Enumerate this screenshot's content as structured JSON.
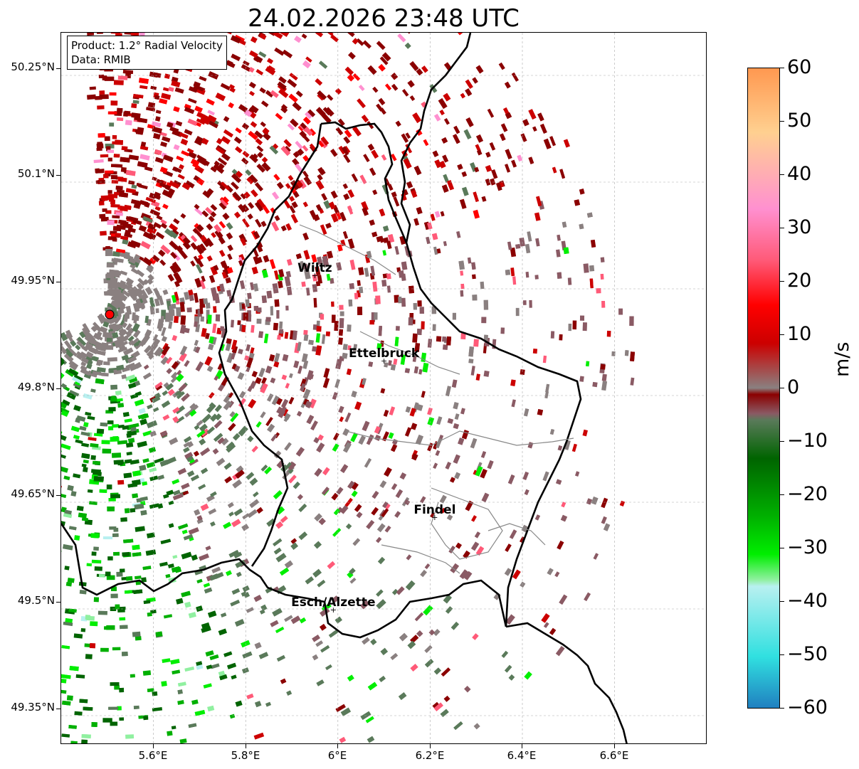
{
  "title": "24.02.2026 23:48 UTC",
  "info": {
    "product": "Product: 1.2° Radial Velocity",
    "source": "Data: RMIB"
  },
  "axes": {
    "lat_labels": [
      "50.25°N",
      "50.1°N",
      "49.95°N",
      "49.8°N",
      "49.65°N",
      "49.5°N",
      "49.35°N"
    ],
    "lon_labels": [
      "5.6°E",
      "5.8°E",
      "6°E",
      "6.2°E",
      "6.4°E",
      "6.6°E"
    ]
  },
  "cities": [
    {
      "name": "Wiltz",
      "lon": 5.95,
      "lat": 49.97
    },
    {
      "name": "Ettelbruck",
      "lon": 6.1,
      "lat": 49.85
    },
    {
      "name": "Findel",
      "lon": 6.21,
      "lat": 49.63
    },
    {
      "name": "Esch/Alzette",
      "lon": 5.99,
      "lat": 49.5
    }
  ],
  "radar_site": {
    "lon": 5.505,
    "lat": 49.914,
    "color": "#ff0000"
  },
  "colorbar": {
    "unit": "m/s",
    "min": -60,
    "max": 60,
    "tick_labels": [
      "60",
      "50",
      "40",
      "30",
      "20",
      "10",
      "0",
      "−10",
      "−20",
      "−30",
      "−40",
      "−50",
      "−60"
    ],
    "colors": {
      "dark_red": "#8b0000",
      "red": "#cc0000",
      "bright_red": "#ff0000",
      "pink": "#ff5a78",
      "light_pink": "#ff90d0",
      "peach": "#ffd090",
      "orange": "#ff9850",
      "mauve": "#8a5a64",
      "gray": "#8a8080",
      "gray_green": "#5a7a5a",
      "dark_green": "#006400",
      "green": "#00b000",
      "bright_green": "#00ee00",
      "light_green": "#90f0a0",
      "pale_cyan": "#b8f0f0",
      "cyan": "#30e0e0",
      "blue": "#2080c0"
    }
  }
}
